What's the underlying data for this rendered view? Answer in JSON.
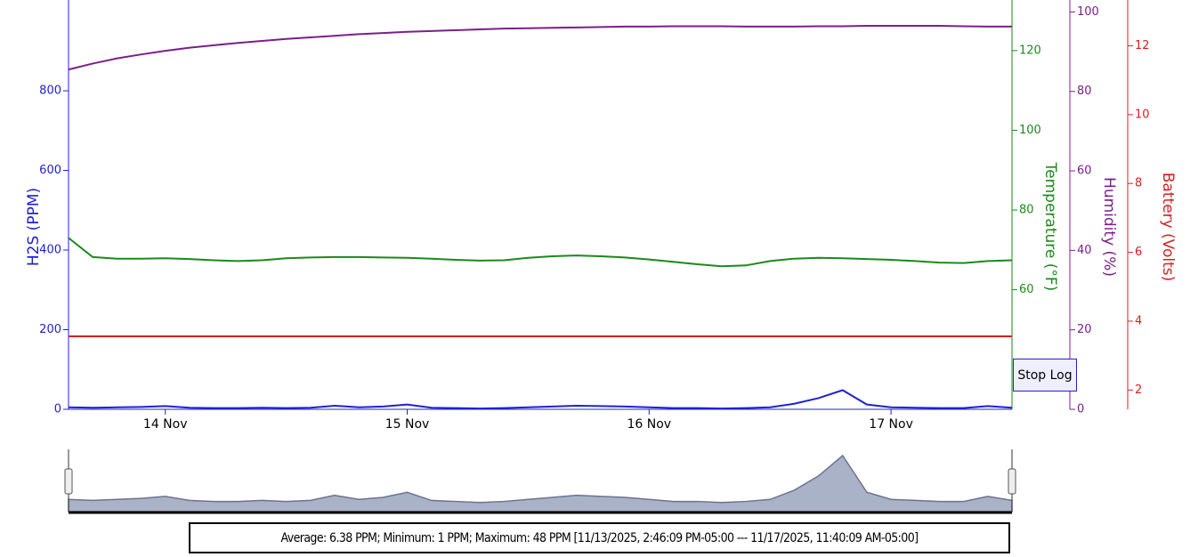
{
  "chart_data": {
    "type": "line",
    "x": [
      13.6,
      13.7,
      13.8,
      13.9,
      14.0,
      14.1,
      14.2,
      14.3,
      14.4,
      14.5,
      14.6,
      14.7,
      14.8,
      14.9,
      15.0,
      15.1,
      15.2,
      15.3,
      15.4,
      15.5,
      15.6,
      15.7,
      15.8,
      15.9,
      16.0,
      16.1,
      16.2,
      16.3,
      16.4,
      16.5,
      16.6,
      16.7,
      16.8,
      16.9,
      17.0,
      17.1,
      17.2,
      17.3,
      17.4,
      17.5
    ],
    "xlim": [
      13.6,
      17.5
    ],
    "xticks": [
      {
        "value": 14,
        "label": "14 Nov"
      },
      {
        "value": 15,
        "label": "15 Nov"
      },
      {
        "value": 16,
        "label": "16 Nov"
      },
      {
        "value": 17,
        "label": "17 Nov"
      }
    ],
    "ylabel": "H2S (PPM)",
    "ylim": [
      0,
      1028
    ],
    "yticks": [
      0,
      200,
      400,
      600,
      800
    ],
    "ycolor": "#2020d0",
    "y2label": "Temperature (°F)",
    "y2lim": [
      30,
      132.7
    ],
    "y2ticks": [
      60,
      80,
      100,
      120
    ],
    "y2color": "#1a8a1a",
    "y3label": "Humidity (%)",
    "y3lim": [
      0,
      103
    ],
    "y3ticks": [
      0,
      20,
      40,
      60,
      80,
      100
    ],
    "y3color": "#7b1f8a",
    "y4label": "Battery (Volts)",
    "y4lim": [
      1.44,
      13.33
    ],
    "y4ticks": [
      2,
      4,
      6,
      8,
      10,
      12
    ],
    "y4color": "#d42020",
    "series": [
      {
        "name": "H2S",
        "color": "#2020d0",
        "axis": "y",
        "values": [
          5,
          4,
          5,
          6,
          8,
          4,
          3,
          3,
          4,
          3,
          4,
          9,
          5,
          7,
          12,
          4,
          3,
          2,
          3,
          5,
          7,
          9,
          8,
          7,
          5,
          3,
          3,
          2,
          3,
          5,
          14,
          28,
          48,
          12,
          5,
          4,
          3,
          3,
          8,
          4
        ]
      },
      {
        "name": "Temperature",
        "color": "#1a8a1a",
        "axis": "y2",
        "values": [
          73,
          68.2,
          67.8,
          67.8,
          67.9,
          67.7,
          67.4,
          67.2,
          67.4,
          67.9,
          68.1,
          68.2,
          68.2,
          68.1,
          68,
          67.8,
          67.5,
          67.3,
          67.4,
          68,
          68.4,
          68.6,
          68.4,
          68.1,
          67.6,
          67,
          66.4,
          65.9,
          66.1,
          67.2,
          67.8,
          68,
          67.9,
          67.7,
          67.5,
          67.2,
          66.8,
          66.7,
          67.2,
          67.4
        ]
      },
      {
        "name": "Humidity",
        "color": "#7b1f8a",
        "axis": "y3",
        "values": [
          85.5,
          87,
          88.3,
          89.3,
          90.2,
          91,
          91.6,
          92.2,
          92.7,
          93.2,
          93.6,
          94,
          94.4,
          94.7,
          95,
          95.2,
          95.4,
          95.6,
          95.8,
          95.9,
          96,
          96.1,
          96.2,
          96.3,
          96.3,
          96.4,
          96.4,
          96.4,
          96.3,
          96.3,
          96.3,
          96.4,
          96.4,
          96.5,
          96.5,
          96.5,
          96.5,
          96.4,
          96.3,
          96.3
        ]
      },
      {
        "name": "Battery",
        "color": "#d42020",
        "axis": "y4",
        "values": [
          3.56,
          3.56,
          3.56,
          3.56,
          3.56,
          3.56,
          3.56,
          3.56,
          3.56,
          3.56,
          3.56,
          3.56,
          3.56,
          3.56,
          3.56,
          3.56,
          3.56,
          3.56,
          3.56,
          3.56,
          3.56,
          3.56,
          3.56,
          3.56,
          3.56,
          3.56,
          3.56,
          3.56,
          3.56,
          3.56,
          3.56,
          3.56,
          3.56,
          3.56,
          3.56,
          3.56,
          3.56,
          3.56,
          3.56,
          3.56
        ]
      }
    ]
  },
  "button": "Stop Log",
  "summary": "Average: 6.38 PPM; Minimum: 1 PPM; Maximum: 48 PPM [11/13/2025, 2:46:09 PM-05:00 --- 11/17/2025, 11:40:09 AM-05:00]"
}
